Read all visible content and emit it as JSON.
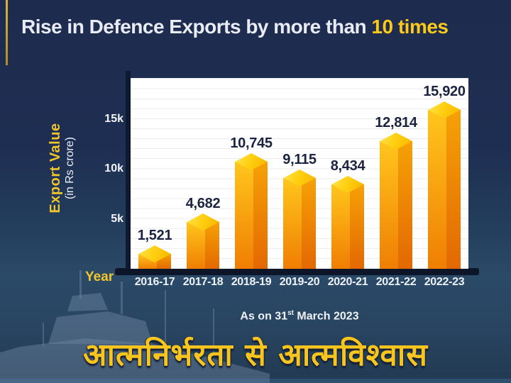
{
  "header": {
    "title_prefix": "Rise in Defence Exports by more than ",
    "title_highlight": "10 times"
  },
  "chart_data": {
    "type": "bar",
    "title": "Rise in Defence Exports by more than 10 times",
    "categories": [
      "2016-17",
      "2017-18",
      "2018-19",
      "2019-20",
      "2020-21",
      "2021-22",
      "2022-23"
    ],
    "values": [
      1521,
      4682,
      10745,
      9115,
      8434,
      12814,
      15920
    ],
    "labels": [
      "1,521",
      "4,682",
      "10,745",
      "9,115",
      "8,434",
      "12,814",
      "15,920"
    ],
    "xlabel": "Year",
    "ylabel": "Export Value",
    "ylabel_sub": "(in Rs crore)",
    "yticks": [
      {
        "label": "5k",
        "value": 5000
      },
      {
        "label": "10k",
        "value": 10000
      },
      {
        "label": "15k",
        "value": 15000
      }
    ],
    "ylim": [
      0,
      19000
    ],
    "grid": true,
    "legend": "none",
    "note": {
      "prefix": "As on 31",
      "sup": "st",
      "suffix": " March 2023"
    }
  },
  "banner": {
    "text": "आत्मनिर्भरता से आत्मविश्वास"
  },
  "colors": {
    "background_navy": "#1e2c50",
    "sea_blue": "#2b4a68",
    "accent_gold_line": "#c7a02c",
    "title_white": "#e9ecf4",
    "title_highlight_yellow": "#fcc918",
    "axis_dark": "#0e1a30",
    "bar_cap_yellow": "#ffd012",
    "bar_front_orange_top": "#ffc61c",
    "bar_front_orange_bottom": "#f07e03",
    "bar_side_orange": "#e36802",
    "bar_value_label_navy": "#1a2440",
    "banner_yellow": "#f7c51e"
  }
}
